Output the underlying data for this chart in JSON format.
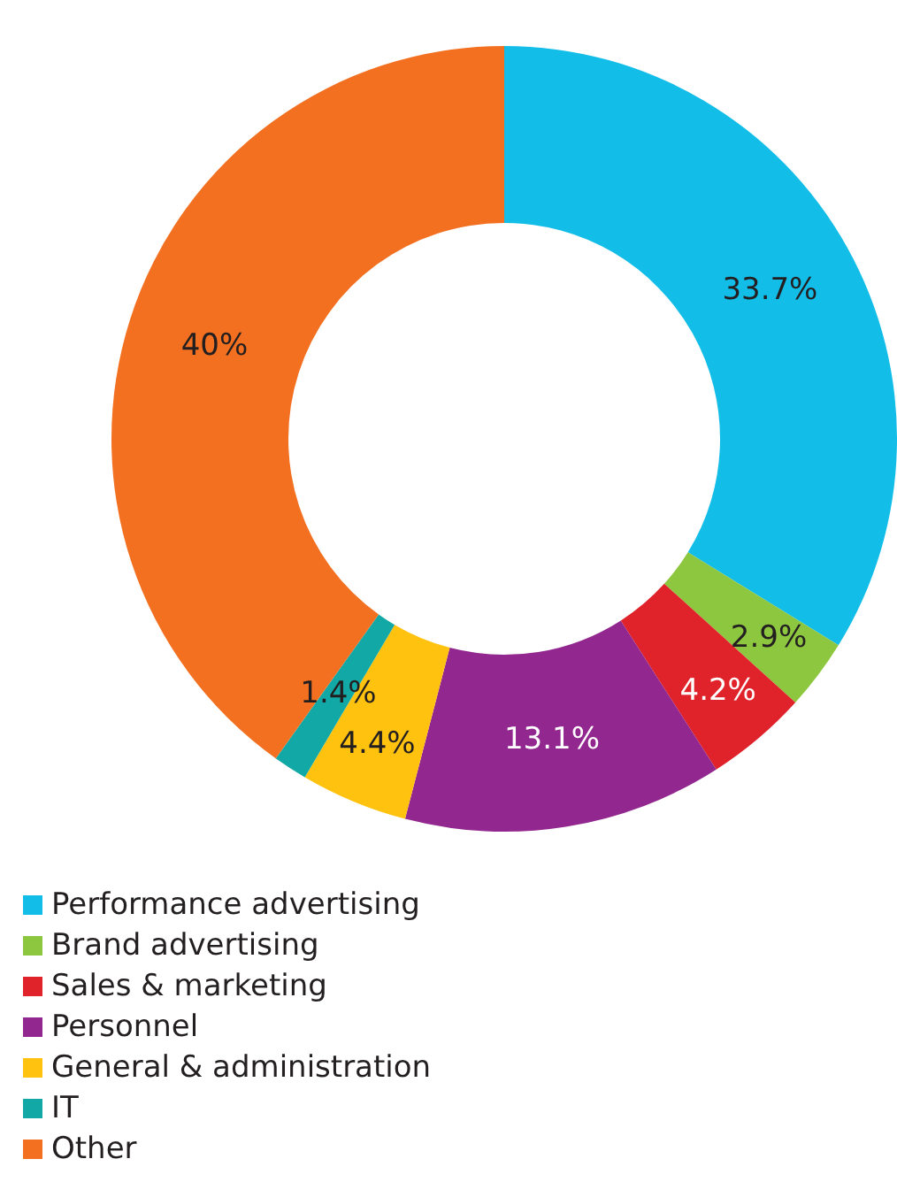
{
  "chart_data": {
    "type": "donut",
    "categories": [
      "Performance advertising",
      "Brand advertising",
      "Sales & marketing",
      "Personnel",
      "General & administration",
      "IT",
      "Other"
    ],
    "values": [
      33.7,
      2.9,
      4.2,
      13.1,
      4.4,
      1.4,
      40
    ],
    "value_labels": [
      "33.7%",
      "2.9%",
      "4.2%",
      "13.1%",
      "4.4%",
      "1.4%",
      "40%"
    ],
    "colors": [
      "#12bde8",
      "#8dc63f",
      "#e0232b",
      "#92278f",
      "#ffc20e",
      "#12a8a5",
      "#f37021"
    ],
    "legend": "bottom left"
  }
}
